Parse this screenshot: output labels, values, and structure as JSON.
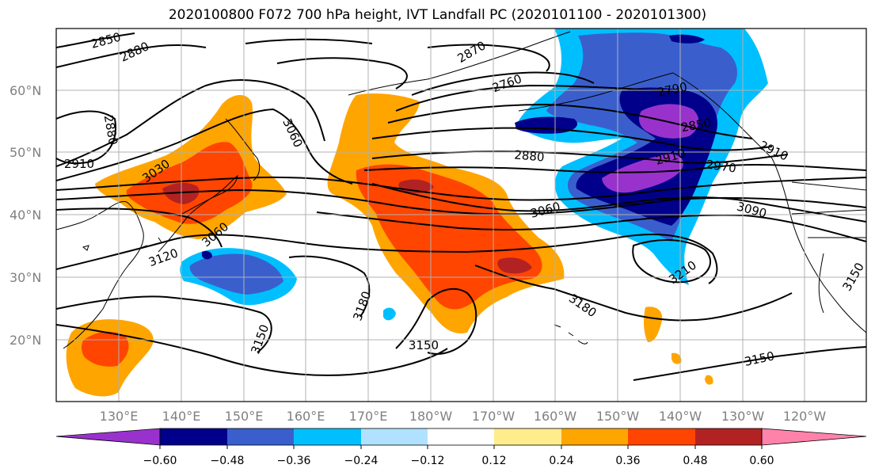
{
  "title": "2020100800 F072 700 hPa height, IVT Landfall PC (2020101100 - 2020101300)",
  "lat_labels": [
    "60°N",
    "50°N",
    "40°N",
    "30°N",
    "20°N"
  ],
  "lon_labels": [
    "130°E",
    "140°E",
    "150°E",
    "160°E",
    "170°E",
    "180°W",
    "170°W",
    "160°W",
    "150°W",
    "140°W",
    "130°W",
    "120°W"
  ],
  "contour_labels": [
    "2850",
    "2880",
    "2870",
    "2760",
    "2790",
    "2880",
    "3060",
    "2910",
    "3030",
    "3060",
    "3120",
    "2850",
    "2910",
    "2910",
    "2970",
    "2880",
    "3060",
    "3090",
    "3210",
    "3180",
    "3180",
    "3150",
    "3150",
    "3150",
    "3150"
  ],
  "colorbar": {
    "ticks": [
      "-0.60",
      "-0.48",
      "-0.36",
      "-0.24",
      "-0.12",
      "0.12",
      "0.24",
      "0.36",
      "0.48",
      "0.60"
    ],
    "colors": [
      "#9932cc",
      "#00008b",
      "#3a5fcd",
      "#00bfff",
      "#b0e2ff",
      "#ffffff",
      "#ffec8b",
      "#ffa500",
      "#ff4500",
      "#b22222",
      "#ff82ab"
    ]
  },
  "colors": {
    "gridline": "#b0b0b0",
    "tick_label": "#808080",
    "contour": "#000000"
  }
}
